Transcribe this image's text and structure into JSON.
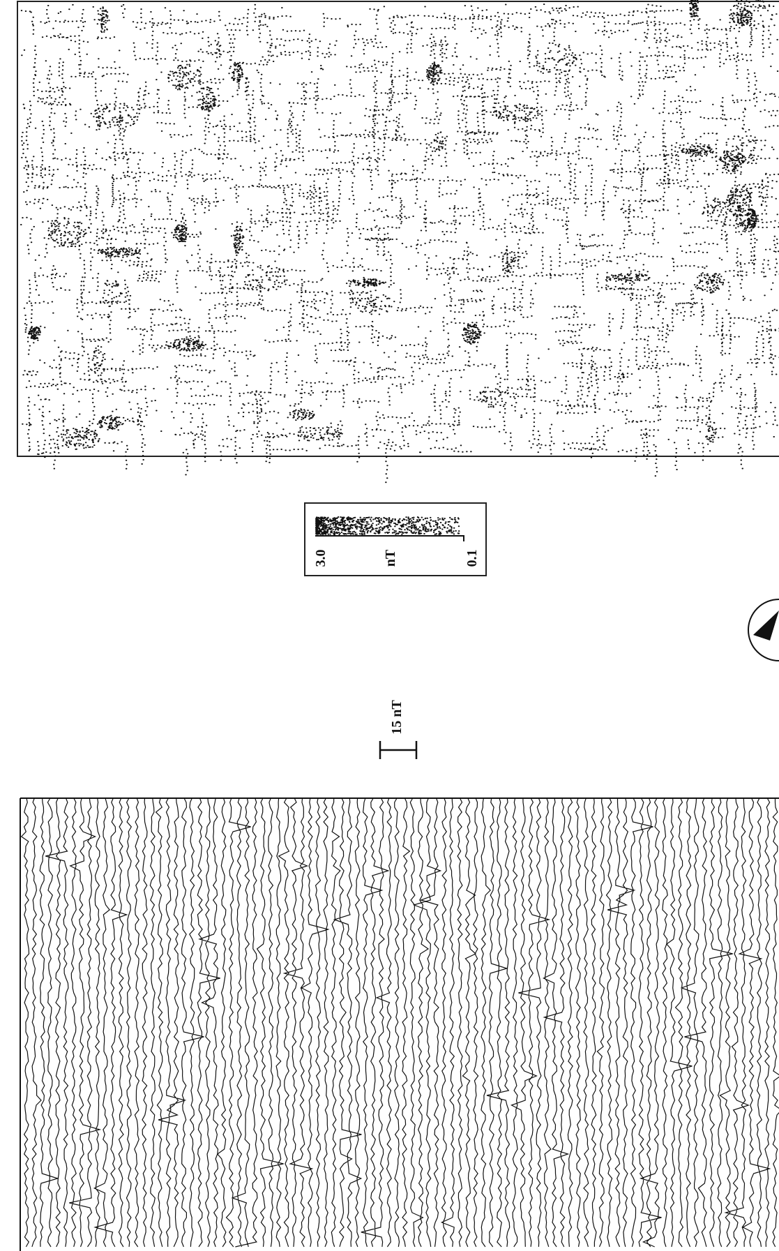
{
  "legend": {
    "max": "3.0",
    "unit": "nT",
    "min": "0.1"
  },
  "scale_bar": {
    "label": "15 nT"
  }
}
